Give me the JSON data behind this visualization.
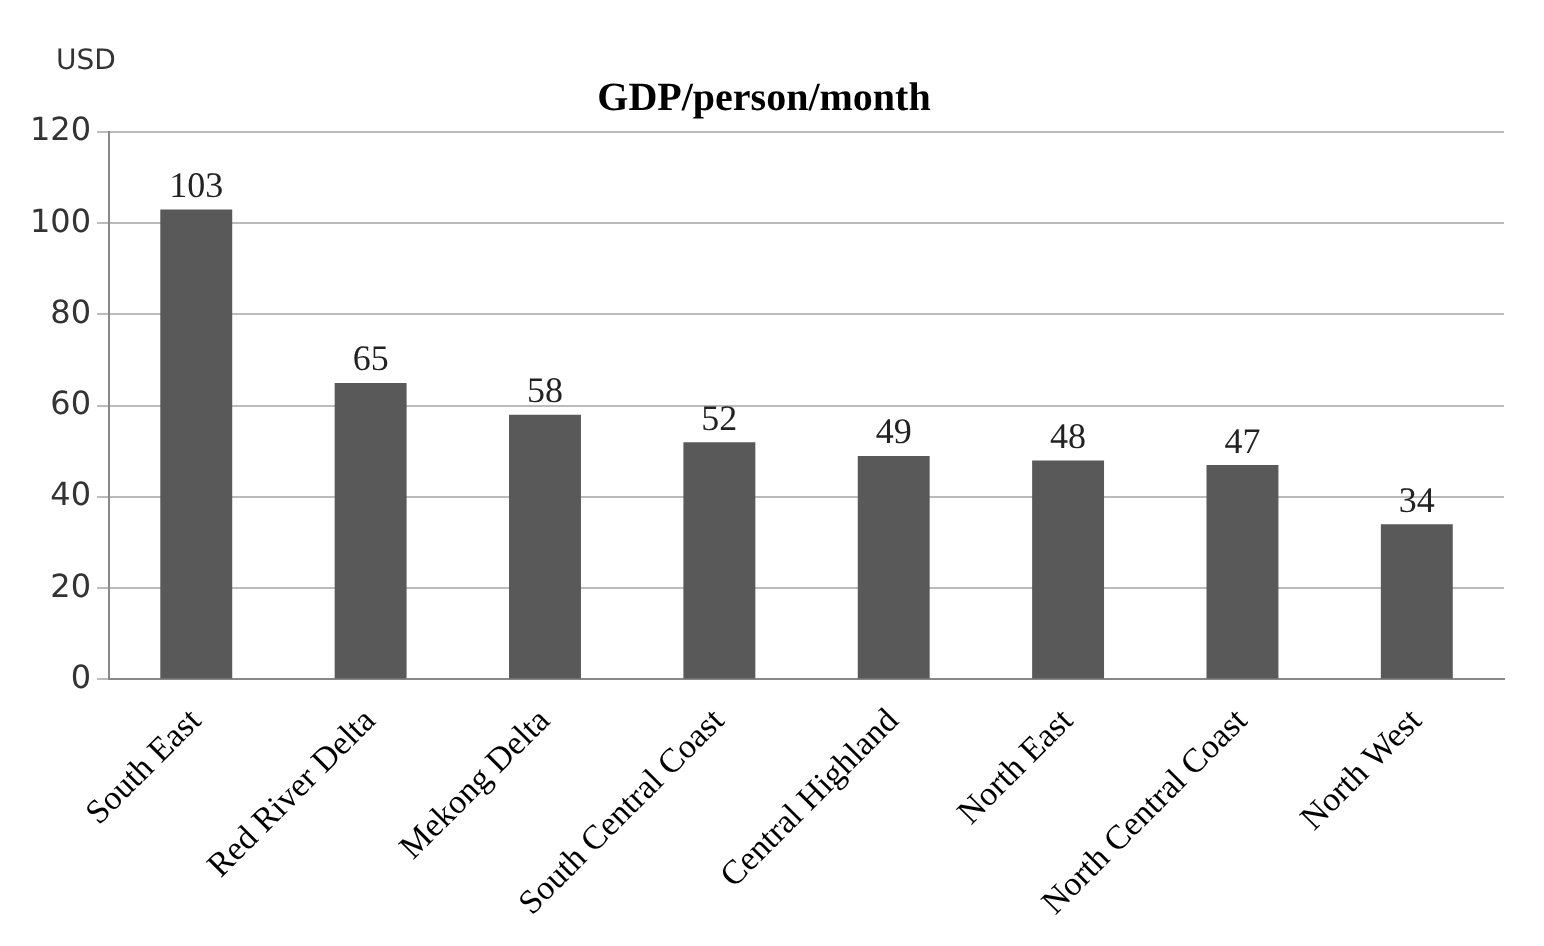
{
  "chart_data": {
    "type": "bar",
    "title": "GDP/person/month",
    "ylabel": "USD",
    "categories": [
      "South East",
      "Red River Delta",
      "Mekong Delta",
      "South Central Coast",
      "Central Highland",
      "North East",
      "North Central Coast",
      "North West"
    ],
    "values": [
      103,
      65,
      58,
      52,
      49,
      48,
      47,
      34
    ],
    "color": "#595959",
    "ylim": [
      0,
      120
    ],
    "yticks": [
      0,
      20,
      40,
      60,
      80,
      100,
      120
    ],
    "grid": "y",
    "legend": false,
    "data_labels": true
  }
}
